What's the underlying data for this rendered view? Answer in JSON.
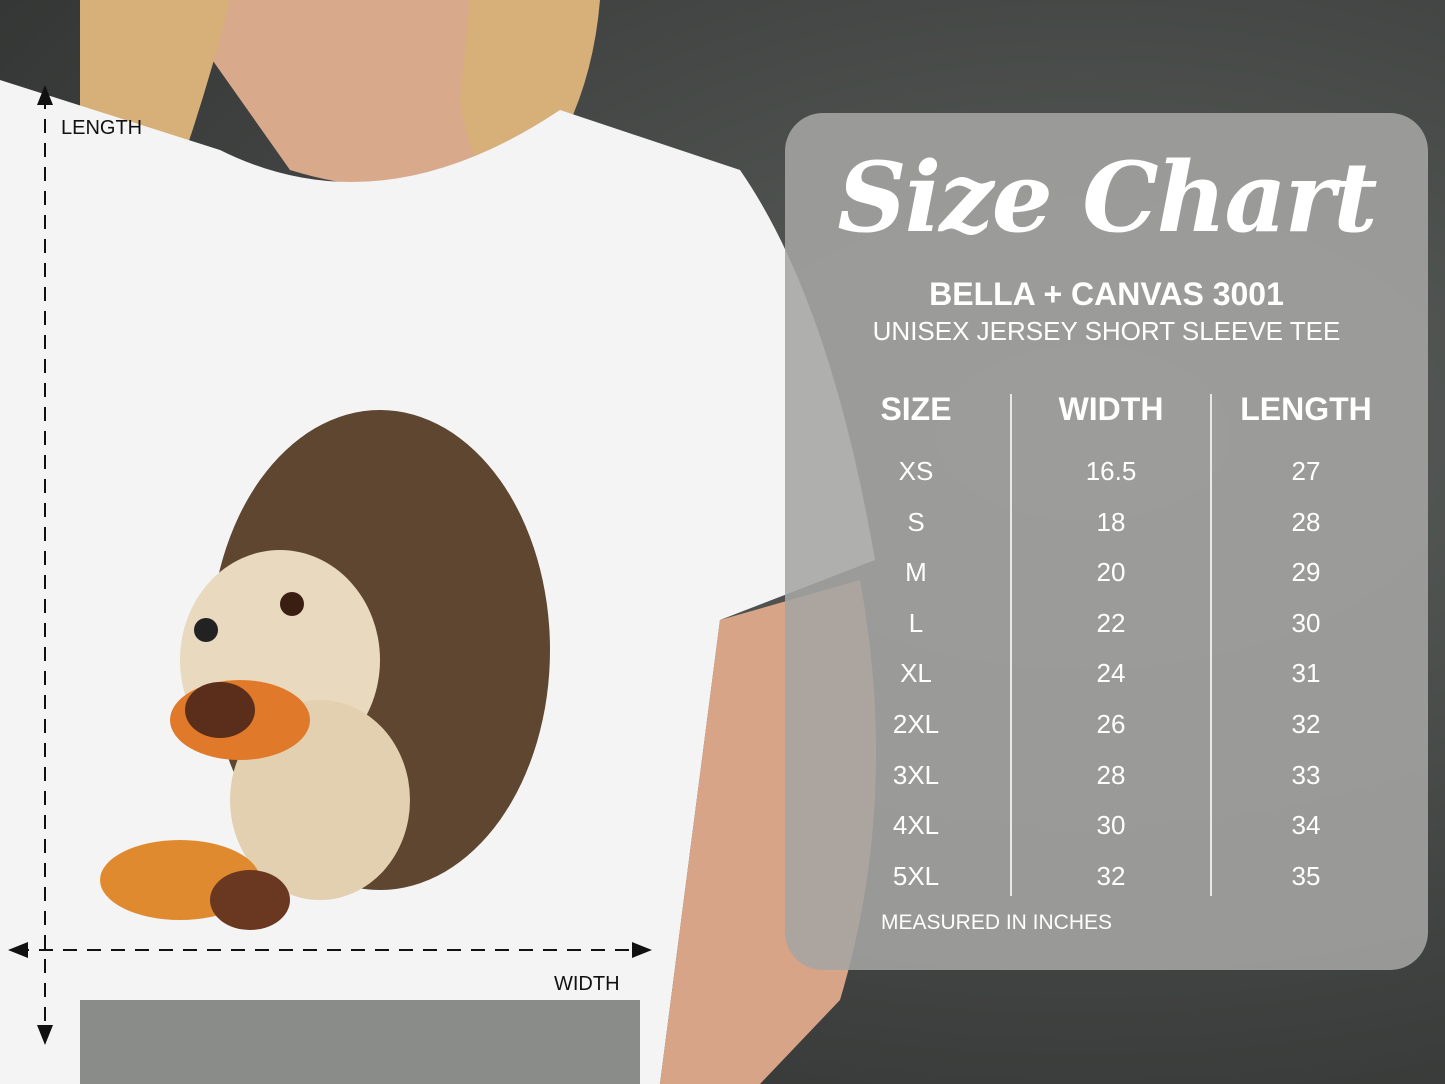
{
  "chart": {
    "title": "Size Chart",
    "brand": "BELLA + CANVAS 3001",
    "subtitle": "UNISEX JERSEY SHORT SLEEVE TEE",
    "columns": [
      "SIZE",
      "WIDTH",
      "LENGTH"
    ],
    "rows": [
      [
        "XS",
        "16.5",
        "27"
      ],
      [
        "S",
        "18",
        "28"
      ],
      [
        "M",
        "20",
        "29"
      ],
      [
        "L",
        "22",
        "30"
      ],
      [
        "XL",
        "24",
        "31"
      ],
      [
        "2XL",
        "26",
        "32"
      ],
      [
        "3XL",
        "28",
        "33"
      ],
      [
        "4XL",
        "30",
        "34"
      ],
      [
        "5XL",
        "32",
        "35"
      ]
    ],
    "note": "MEASURED IN INCHES"
  },
  "measure": {
    "length_label": "LENGTH",
    "width_label": "WIDTH"
  },
  "colors": {
    "panel": "#a5a5a3",
    "text": "#ffffff",
    "shirt": "#f4f4f4"
  }
}
